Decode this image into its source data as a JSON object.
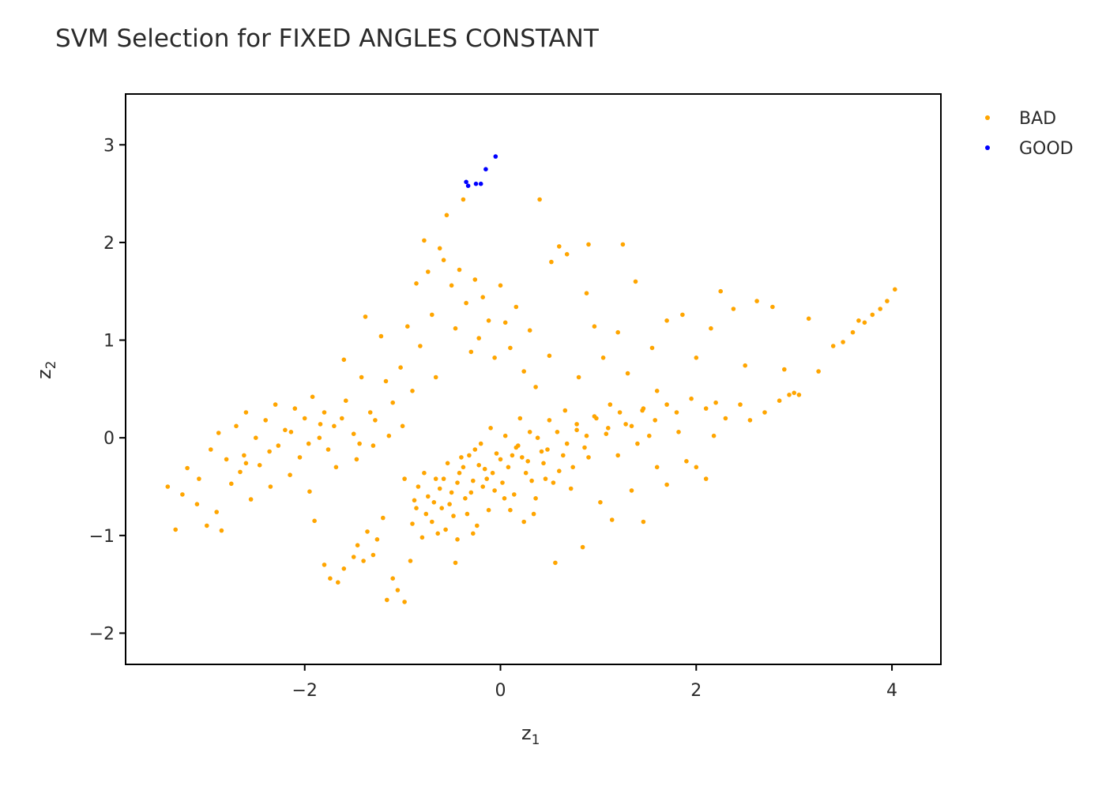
{
  "title": "SVM Selection for FIXED ANGLES CONSTANT",
  "colors": {
    "bad": "#FFA500",
    "good": "#0000FF",
    "frame": "#000000",
    "text": "#2a2a2a"
  },
  "chart_data": {
    "type": "scatter",
    "title": "SVM Selection for FIXED ANGLES CONSTANT",
    "xlabel": "z",
    "xlabel_sub": "1",
    "ylabel": "z",
    "ylabel_sub": "2",
    "xlim": [
      -3.83,
      4.5
    ],
    "ylim": [
      -2.32,
      3.52
    ],
    "xticks": [
      -2,
      0,
      2,
      4
    ],
    "yticks": [
      -2,
      -1,
      0,
      1,
      2,
      3
    ],
    "xtick_labels": [
      "−2",
      "0",
      "2",
      "4"
    ],
    "ytick_labels": [
      "−2",
      "−1",
      "0",
      "1",
      "2",
      "3"
    ],
    "grid": false,
    "legend_position": "top-right",
    "legend": [
      "BAD",
      "GOOD"
    ],
    "series": [
      {
        "name": "BAD",
        "color": "#FFA500",
        "points": [
          [
            -3.4,
            -0.5
          ],
          [
            -3.32,
            -0.94
          ],
          [
            -3.25,
            -0.58
          ],
          [
            -3.2,
            -0.31
          ],
          [
            -3.1,
            -0.68
          ],
          [
            -3.08,
            -0.42
          ],
          [
            -3.0,
            -0.9
          ],
          [
            -2.96,
            -0.12
          ],
          [
            -2.9,
            -0.76
          ],
          [
            -2.88,
            0.05
          ],
          [
            -2.85,
            -0.95
          ],
          [
            -2.8,
            -0.22
          ],
          [
            -2.75,
            -0.47
          ],
          [
            -2.7,
            0.12
          ],
          [
            -2.66,
            -0.35
          ],
          [
            -2.62,
            -0.18
          ],
          [
            -2.6,
            0.26
          ],
          [
            -2.55,
            -0.63
          ],
          [
            -2.5,
            0.0
          ],
          [
            -2.46,
            -0.28
          ],
          [
            -2.4,
            0.18
          ],
          [
            -2.35,
            -0.5
          ],
          [
            -2.3,
            0.34
          ],
          [
            -2.27,
            -0.08
          ],
          [
            -2.2,
            0.08
          ],
          [
            -2.15,
            -0.38
          ],
          [
            -2.1,
            0.3
          ],
          [
            -2.05,
            -0.2
          ],
          [
            -2.0,
            0.2
          ],
          [
            -1.95,
            -0.55
          ],
          [
            -1.92,
            0.42
          ],
          [
            -1.9,
            -0.85
          ],
          [
            -1.85,
            0.0
          ],
          [
            -1.8,
            0.26
          ],
          [
            -1.76,
            -0.12
          ],
          [
            -1.7,
            0.12
          ],
          [
            -1.68,
            -0.3
          ],
          [
            -1.6,
            0.8
          ],
          [
            -1.58,
            0.38
          ],
          [
            -1.5,
            0.04
          ],
          [
            -1.47,
            -0.22
          ],
          [
            -1.42,
            0.62
          ],
          [
            -1.38,
            1.24
          ],
          [
            -1.33,
            0.26
          ],
          [
            -1.3,
            -0.08
          ],
          [
            -1.22,
            1.04
          ],
          [
            -1.17,
            0.58
          ],
          [
            -1.1,
            0.36
          ],
          [
            -1.02,
            0.72
          ],
          [
            -1.0,
            0.12
          ],
          [
            -0.95,
            1.14
          ],
          [
            -0.9,
            0.48
          ],
          [
            -0.86,
            1.58
          ],
          [
            -0.82,
            0.94
          ],
          [
            -0.78,
            2.02
          ],
          [
            -0.74,
            1.7
          ],
          [
            -0.7,
            1.26
          ],
          [
            -0.66,
            0.62
          ],
          [
            -0.62,
            1.94
          ],
          [
            -0.58,
            1.82
          ],
          [
            -0.55,
            2.28
          ],
          [
            -0.5,
            1.56
          ],
          [
            -0.46,
            1.12
          ],
          [
            -0.42,
            1.72
          ],
          [
            -0.38,
            2.44
          ],
          [
            -0.35,
            1.38
          ],
          [
            -0.3,
            0.88
          ],
          [
            -0.26,
            1.62
          ],
          [
            -0.22,
            1.02
          ],
          [
            -0.18,
            1.44
          ],
          [
            -0.12,
            1.2
          ],
          [
            -0.06,
            0.82
          ],
          [
            0.0,
            1.56
          ],
          [
            0.05,
            1.18
          ],
          [
            0.1,
            0.92
          ],
          [
            0.16,
            1.34
          ],
          [
            0.24,
            0.68
          ],
          [
            0.3,
            1.1
          ],
          [
            0.36,
            0.52
          ],
          [
            0.4,
            2.44
          ],
          [
            0.5,
            0.84
          ],
          [
            0.52,
            1.8
          ],
          [
            0.6,
            1.96
          ],
          [
            0.68,
            1.88
          ],
          [
            0.8,
            0.62
          ],
          [
            0.88,
            1.48
          ],
          [
            0.9,
            1.98
          ],
          [
            0.96,
            1.14
          ],
          [
            1.05,
            0.82
          ],
          [
            1.12,
            0.34
          ],
          [
            1.2,
            1.08
          ],
          [
            1.25,
            1.98
          ],
          [
            1.3,
            0.66
          ],
          [
            1.38,
            1.6
          ],
          [
            1.45,
            0.28
          ],
          [
            1.55,
            0.92
          ],
          [
            1.6,
            0.48
          ],
          [
            1.7,
            1.2
          ],
          [
            1.8,
            0.26
          ],
          [
            1.86,
            1.26
          ],
          [
            1.95,
            0.4
          ],
          [
            2.0,
            0.82
          ],
          [
            2.1,
            0.3
          ],
          [
            2.15,
            1.12
          ],
          [
            2.2,
            0.36
          ],
          [
            2.25,
            1.5
          ],
          [
            2.3,
            0.2
          ],
          [
            2.38,
            1.32
          ],
          [
            2.45,
            0.34
          ],
          [
            2.5,
            0.74
          ],
          [
            2.55,
            0.18
          ],
          [
            2.62,
            1.4
          ],
          [
            2.7,
            0.26
          ],
          [
            2.78,
            1.34
          ],
          [
            2.85,
            0.38
          ],
          [
            2.9,
            0.7
          ],
          [
            2.95,
            0.44
          ],
          [
            3.0,
            0.46
          ],
          [
            3.05,
            0.44
          ],
          [
            3.15,
            1.22
          ],
          [
            3.25,
            0.68
          ],
          [
            3.4,
            0.94
          ],
          [
            3.5,
            0.98
          ],
          [
            3.6,
            1.08
          ],
          [
            3.66,
            1.2
          ],
          [
            3.72,
            1.18
          ],
          [
            3.8,
            1.26
          ],
          [
            3.88,
            1.32
          ],
          [
            3.95,
            1.4
          ],
          [
            4.03,
            1.52
          ],
          [
            -1.8,
            -1.3
          ],
          [
            -1.74,
            -1.44
          ],
          [
            -1.66,
            -1.48
          ],
          [
            -1.6,
            -1.34
          ],
          [
            -1.5,
            -1.22
          ],
          [
            -1.46,
            -1.1
          ],
          [
            -1.4,
            -1.26
          ],
          [
            -1.36,
            -0.96
          ],
          [
            -1.3,
            -1.2
          ],
          [
            -1.26,
            -1.04
          ],
          [
            -1.2,
            -0.82
          ],
          [
            -1.16,
            -1.66
          ],
          [
            -1.1,
            -1.44
          ],
          [
            -1.05,
            -1.56
          ],
          [
            -0.98,
            -1.68
          ],
          [
            -0.92,
            -1.26
          ],
          [
            -0.86,
            -0.72
          ],
          [
            -0.8,
            -1.02
          ],
          [
            -0.74,
            -0.6
          ],
          [
            -0.7,
            -0.86
          ],
          [
            -0.66,
            -0.42
          ],
          [
            -0.6,
            -0.72
          ],
          [
            -0.56,
            -0.94
          ],
          [
            -0.5,
            -0.56
          ],
          [
            -0.46,
            -1.28
          ],
          [
            -0.42,
            -0.36
          ],
          [
            -0.36,
            -0.62
          ],
          [
            -0.32,
            -0.18
          ],
          [
            -0.28,
            -0.44
          ],
          [
            -0.24,
            -0.9
          ],
          [
            -0.2,
            -0.06
          ],
          [
            -0.16,
            -0.32
          ],
          [
            -0.1,
            0.1
          ],
          [
            -0.06,
            -0.54
          ],
          [
            0.0,
            -0.22
          ],
          [
            0.05,
            0.02
          ],
          [
            0.1,
            -0.74
          ],
          [
            0.16,
            -0.1
          ],
          [
            0.2,
            0.2
          ],
          [
            0.26,
            -0.36
          ],
          [
            0.3,
            0.06
          ],
          [
            0.36,
            -0.62
          ],
          [
            0.42,
            -0.14
          ],
          [
            0.5,
            0.18
          ],
          [
            0.56,
            -1.28
          ],
          [
            0.6,
            -0.34
          ],
          [
            0.66,
            0.28
          ],
          [
            0.72,
            -0.52
          ],
          [
            0.78,
            0.08
          ],
          [
            0.84,
            -1.12
          ],
          [
            0.9,
            -0.2
          ],
          [
            0.96,
            0.22
          ],
          [
            1.02,
            -0.66
          ],
          [
            1.08,
            0.04
          ],
          [
            1.14,
            -0.84
          ],
          [
            1.2,
            -0.18
          ],
          [
            1.28,
            0.14
          ],
          [
            1.34,
            -0.54
          ],
          [
            1.4,
            -0.06
          ],
          [
            1.46,
            -0.86
          ],
          [
            1.52,
            0.02
          ],
          [
            1.6,
            -0.3
          ],
          [
            1.7,
            -0.48
          ],
          [
            1.82,
            0.06
          ],
          [
            1.9,
            -0.24
          ],
          [
            2.0,
            -0.3
          ],
          [
            2.1,
            -0.42
          ],
          [
            2.18,
            0.02
          ],
          [
            -2.6,
            -0.26
          ],
          [
            -2.36,
            -0.14
          ],
          [
            -2.14,
            0.06
          ],
          [
            -1.96,
            -0.06
          ],
          [
            -1.84,
            0.14
          ],
          [
            -1.62,
            0.2
          ],
          [
            -1.44,
            -0.06
          ],
          [
            -1.28,
            0.18
          ],
          [
            -1.14,
            0.02
          ],
          [
            -0.98,
            -0.42
          ],
          [
            -0.88,
            -0.64
          ],
          [
            -0.78,
            -0.36
          ],
          [
            -0.68,
            -0.66
          ],
          [
            -0.58,
            -0.42
          ],
          [
            -0.48,
            -0.8
          ],
          [
            -0.38,
            -0.3
          ],
          [
            -0.3,
            -0.56
          ],
          [
            -0.22,
            -0.28
          ],
          [
            -0.14,
            -0.42
          ],
          [
            -0.04,
            -0.16
          ],
          [
            0.08,
            -0.3
          ],
          [
            0.18,
            -0.08
          ],
          [
            0.28,
            -0.24
          ],
          [
            0.38,
            0.0
          ],
          [
            0.48,
            -0.12
          ],
          [
            0.58,
            0.06
          ],
          [
            0.68,
            -0.06
          ],
          [
            0.78,
            0.14
          ],
          [
            0.88,
            0.02
          ],
          [
            0.98,
            0.2
          ],
          [
            1.1,
            0.1
          ],
          [
            1.22,
            0.26
          ],
          [
            1.34,
            0.12
          ],
          [
            1.46,
            0.3
          ],
          [
            1.58,
            0.18
          ],
          [
            1.7,
            0.34
          ],
          [
            -0.62,
            -0.52
          ],
          [
            -0.52,
            -0.68
          ],
          [
            -0.44,
            -0.46
          ],
          [
            -0.34,
            -0.78
          ],
          [
            -0.26,
            -0.12
          ],
          [
            -0.18,
            -0.5
          ],
          [
            -0.08,
            -0.36
          ],
          [
            0.02,
            -0.46
          ],
          [
            0.12,
            -0.18
          ],
          [
            0.22,
            -0.2
          ],
          [
            0.32,
            -0.44
          ],
          [
            0.44,
            -0.26
          ],
          [
            0.54,
            -0.46
          ],
          [
            0.64,
            -0.18
          ],
          [
            0.74,
            -0.3
          ],
          [
            0.86,
            -0.1
          ],
          [
            -0.9,
            -0.88
          ],
          [
            -0.84,
            -0.5
          ],
          [
            -0.76,
            -0.78
          ],
          [
            -0.64,
            -0.98
          ],
          [
            -0.54,
            -0.26
          ],
          [
            -0.44,
            -1.04
          ],
          [
            -0.4,
            -0.2
          ],
          [
            -0.28,
            -0.98
          ],
          [
            -0.12,
            -0.74
          ],
          [
            0.04,
            -0.62
          ],
          [
            0.14,
            -0.58
          ],
          [
            0.24,
            -0.86
          ],
          [
            0.34,
            -0.78
          ],
          [
            0.46,
            -0.42
          ]
        ]
      },
      {
        "name": "GOOD",
        "color": "#0000FF",
        "points": [
          [
            -0.05,
            2.88
          ],
          [
            -0.15,
            2.75
          ],
          [
            -0.2,
            2.6
          ],
          [
            -0.25,
            2.6
          ],
          [
            -0.33,
            2.58
          ],
          [
            -0.35,
            2.62
          ]
        ]
      }
    ]
  }
}
